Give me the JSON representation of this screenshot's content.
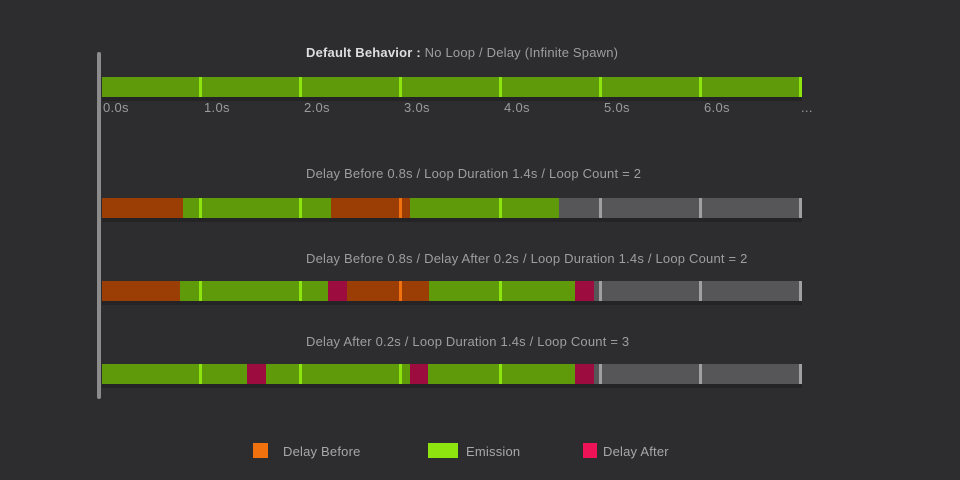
{
  "colors": {
    "background": "#2d2d2f",
    "axis_line": "#8c8c8c",
    "title_text": "#9e9e9e",
    "title_bold_text": "#dedede",
    "label_text": "#9b9b9b",
    "segment": {
      "emission": "#5f9a0b",
      "delay_before": "#9b3e06",
      "delay_after": "#9d0c3e",
      "inactive": "#565658"
    },
    "tick": {
      "emission": "#8ee40e",
      "delay_before": "#f0710e",
      "delay_after": "#ee1356",
      "inactive": "#a0a0a0"
    },
    "legend_swatch": {
      "delay_before": "#f0710e",
      "emission": "#8ee40e",
      "delay_after": "#ee1356"
    }
  },
  "time_axis": {
    "labels": [
      "0.0s",
      "1.0s",
      "2.0s",
      "3.0s",
      "4.0s",
      "5.0s",
      "6.0s"
    ],
    "overflow": "...",
    "seconds_shown": 7
  },
  "rows": [
    {
      "title_bold": "Default Behavior :",
      "title": "No Loop / Delay (Infinite Spawn)",
      "segments": [
        {
          "type": "emission",
          "from": 0,
          "to": 7.0
        }
      ],
      "ticks": [
        {
          "t": 1,
          "type": "emission"
        },
        {
          "t": 2,
          "type": "emission"
        },
        {
          "t": 3,
          "type": "emission"
        },
        {
          "t": 4,
          "type": "emission"
        },
        {
          "t": 5,
          "type": "emission"
        },
        {
          "t": 6,
          "type": "emission"
        },
        {
          "t": 7,
          "type": "emission"
        }
      ]
    },
    {
      "title": "Delay Before 0.8s / Loop Duration 1.4s / Loop Count = 2",
      "segments": [
        {
          "type": "delay_before",
          "from": 0,
          "to": 0.81
        },
        {
          "type": "emission",
          "from": 0.81,
          "to": 2.29
        },
        {
          "type": "delay_before",
          "from": 2.29,
          "to": 3.08
        },
        {
          "type": "emission",
          "from": 3.08,
          "to": 4.57
        },
        {
          "type": "inactive",
          "from": 4.57,
          "to": 7.0
        }
      ],
      "ticks": [
        {
          "t": 1,
          "type": "emission"
        },
        {
          "t": 2,
          "type": "emission"
        },
        {
          "t": 3,
          "type": "delay_before"
        },
        {
          "t": 4,
          "type": "emission"
        },
        {
          "t": 5,
          "type": "inactive"
        },
        {
          "t": 6,
          "type": "inactive"
        },
        {
          "t": 7,
          "type": "inactive"
        }
      ]
    },
    {
      "title": "Delay Before 0.8s / Delay After 0.2s / Loop Duration 1.4s / Loop Count = 2",
      "segments": [
        {
          "type": "delay_before",
          "from": 0,
          "to": 0.78
        },
        {
          "type": "emission",
          "from": 0.78,
          "to": 2.26
        },
        {
          "type": "delay_after",
          "from": 2.26,
          "to": 2.45
        },
        {
          "type": "delay_before",
          "from": 2.45,
          "to": 3.27
        },
        {
          "type": "emission",
          "from": 3.27,
          "to": 4.73
        },
        {
          "type": "delay_after",
          "from": 4.73,
          "to": 4.92
        },
        {
          "type": "inactive",
          "from": 4.92,
          "to": 7.0
        }
      ],
      "ticks": [
        {
          "t": 1,
          "type": "emission"
        },
        {
          "t": 2,
          "type": "emission"
        },
        {
          "t": 3,
          "type": "delay_before"
        },
        {
          "t": 4,
          "type": "emission"
        },
        {
          "t": 5,
          "type": "inactive"
        },
        {
          "t": 6,
          "type": "inactive"
        },
        {
          "t": 7,
          "type": "inactive"
        }
      ]
    },
    {
      "title": "Delay After 0.2s / Loop Duration 1.4s / Loop Count = 3",
      "segments": [
        {
          "type": "emission",
          "from": 0,
          "to": 1.45
        },
        {
          "type": "delay_after",
          "from": 1.45,
          "to": 1.64
        },
        {
          "type": "emission",
          "from": 1.64,
          "to": 3.08
        },
        {
          "type": "delay_after",
          "from": 3.08,
          "to": 3.26
        },
        {
          "type": "emission",
          "from": 3.26,
          "to": 4.73
        },
        {
          "type": "delay_after",
          "from": 4.73,
          "to": 4.92
        },
        {
          "type": "inactive",
          "from": 4.92,
          "to": 7.0
        }
      ],
      "ticks": [
        {
          "t": 1,
          "type": "emission"
        },
        {
          "t": 2,
          "type": "emission"
        },
        {
          "t": 3,
          "type": "emission"
        },
        {
          "t": 4,
          "type": "emission"
        },
        {
          "t": 5,
          "type": "inactive"
        },
        {
          "t": 6,
          "type": "inactive"
        },
        {
          "t": 7,
          "type": "inactive"
        }
      ]
    }
  ],
  "legend": [
    {
      "type": "delay_before",
      "label": "Delay Before"
    },
    {
      "type": "emission",
      "label": "Emission"
    },
    {
      "type": "delay_after",
      "label": "Delay After"
    }
  ]
}
